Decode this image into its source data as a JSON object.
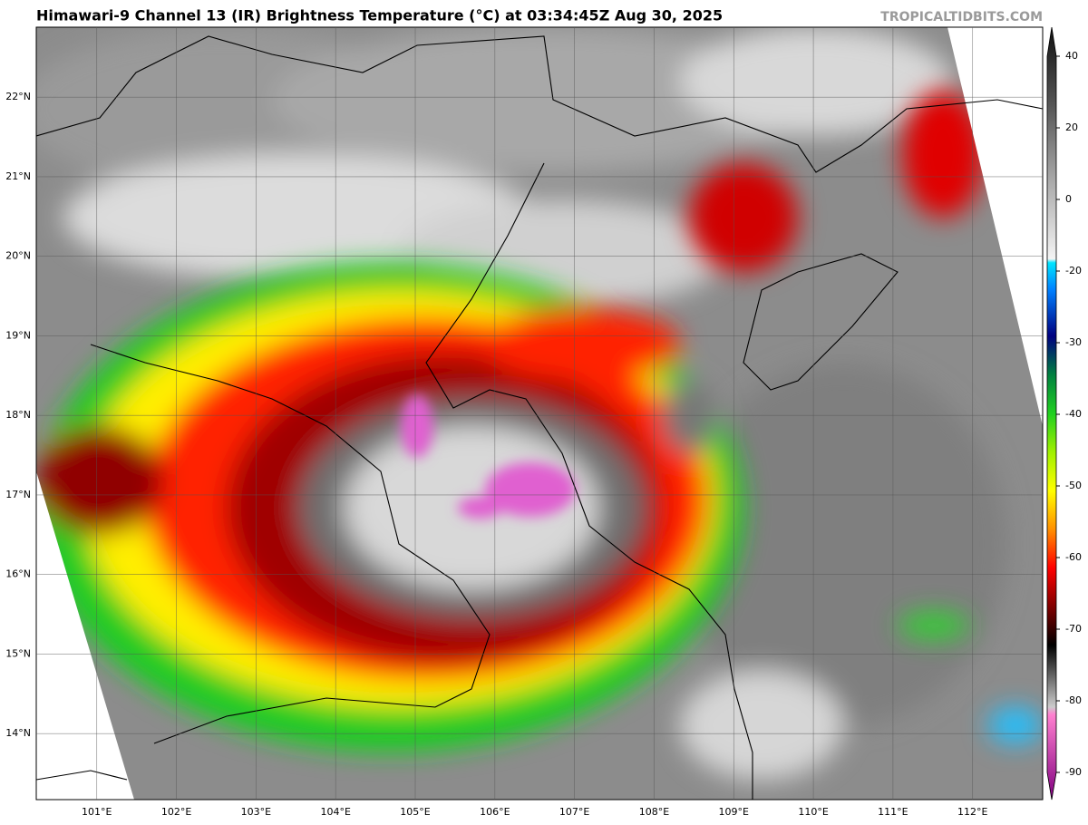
{
  "title": "Himawari-9 Channel 13 (IR) Brightness Temperature (°C) at 03:34:45Z Aug 30, 2025",
  "credit": "TROPICALTIDBITS.COM",
  "map": {
    "xlim": [
      100.24,
      112.88
    ],
    "ylim": [
      13.17,
      22.88
    ],
    "xticks": [
      {
        "value": 101,
        "label": "101°E"
      },
      {
        "value": 102,
        "label": "102°E"
      },
      {
        "value": 103,
        "label": "103°E"
      },
      {
        "value": 104,
        "label": "104°E"
      },
      {
        "value": 105,
        "label": "105°E"
      },
      {
        "value": 106,
        "label": "106°E"
      },
      {
        "value": 107,
        "label": "107°E"
      },
      {
        "value": 108,
        "label": "108°E"
      },
      {
        "value": 109,
        "label": "109°E"
      },
      {
        "value": 110,
        "label": "110°E"
      },
      {
        "value": 111,
        "label": "111°E"
      },
      {
        "value": 112,
        "label": "112°E"
      }
    ],
    "yticks": [
      {
        "value": 22,
        "label": "22°N"
      },
      {
        "value": 21,
        "label": "21°N"
      },
      {
        "value": 20,
        "label": "20°N"
      },
      {
        "value": 19,
        "label": "19°N"
      },
      {
        "value": 18,
        "label": "18°N"
      },
      {
        "value": 17,
        "label": "17°N"
      },
      {
        "value": 16,
        "label": "16°N"
      },
      {
        "value": 15,
        "label": "15°N"
      },
      {
        "value": 14,
        "label": "14°N"
      }
    ]
  },
  "colorbar": {
    "ticks": [
      40,
      20,
      0,
      -20,
      -30,
      -40,
      -50,
      -60,
      -70,
      -80,
      -90
    ]
  }
}
